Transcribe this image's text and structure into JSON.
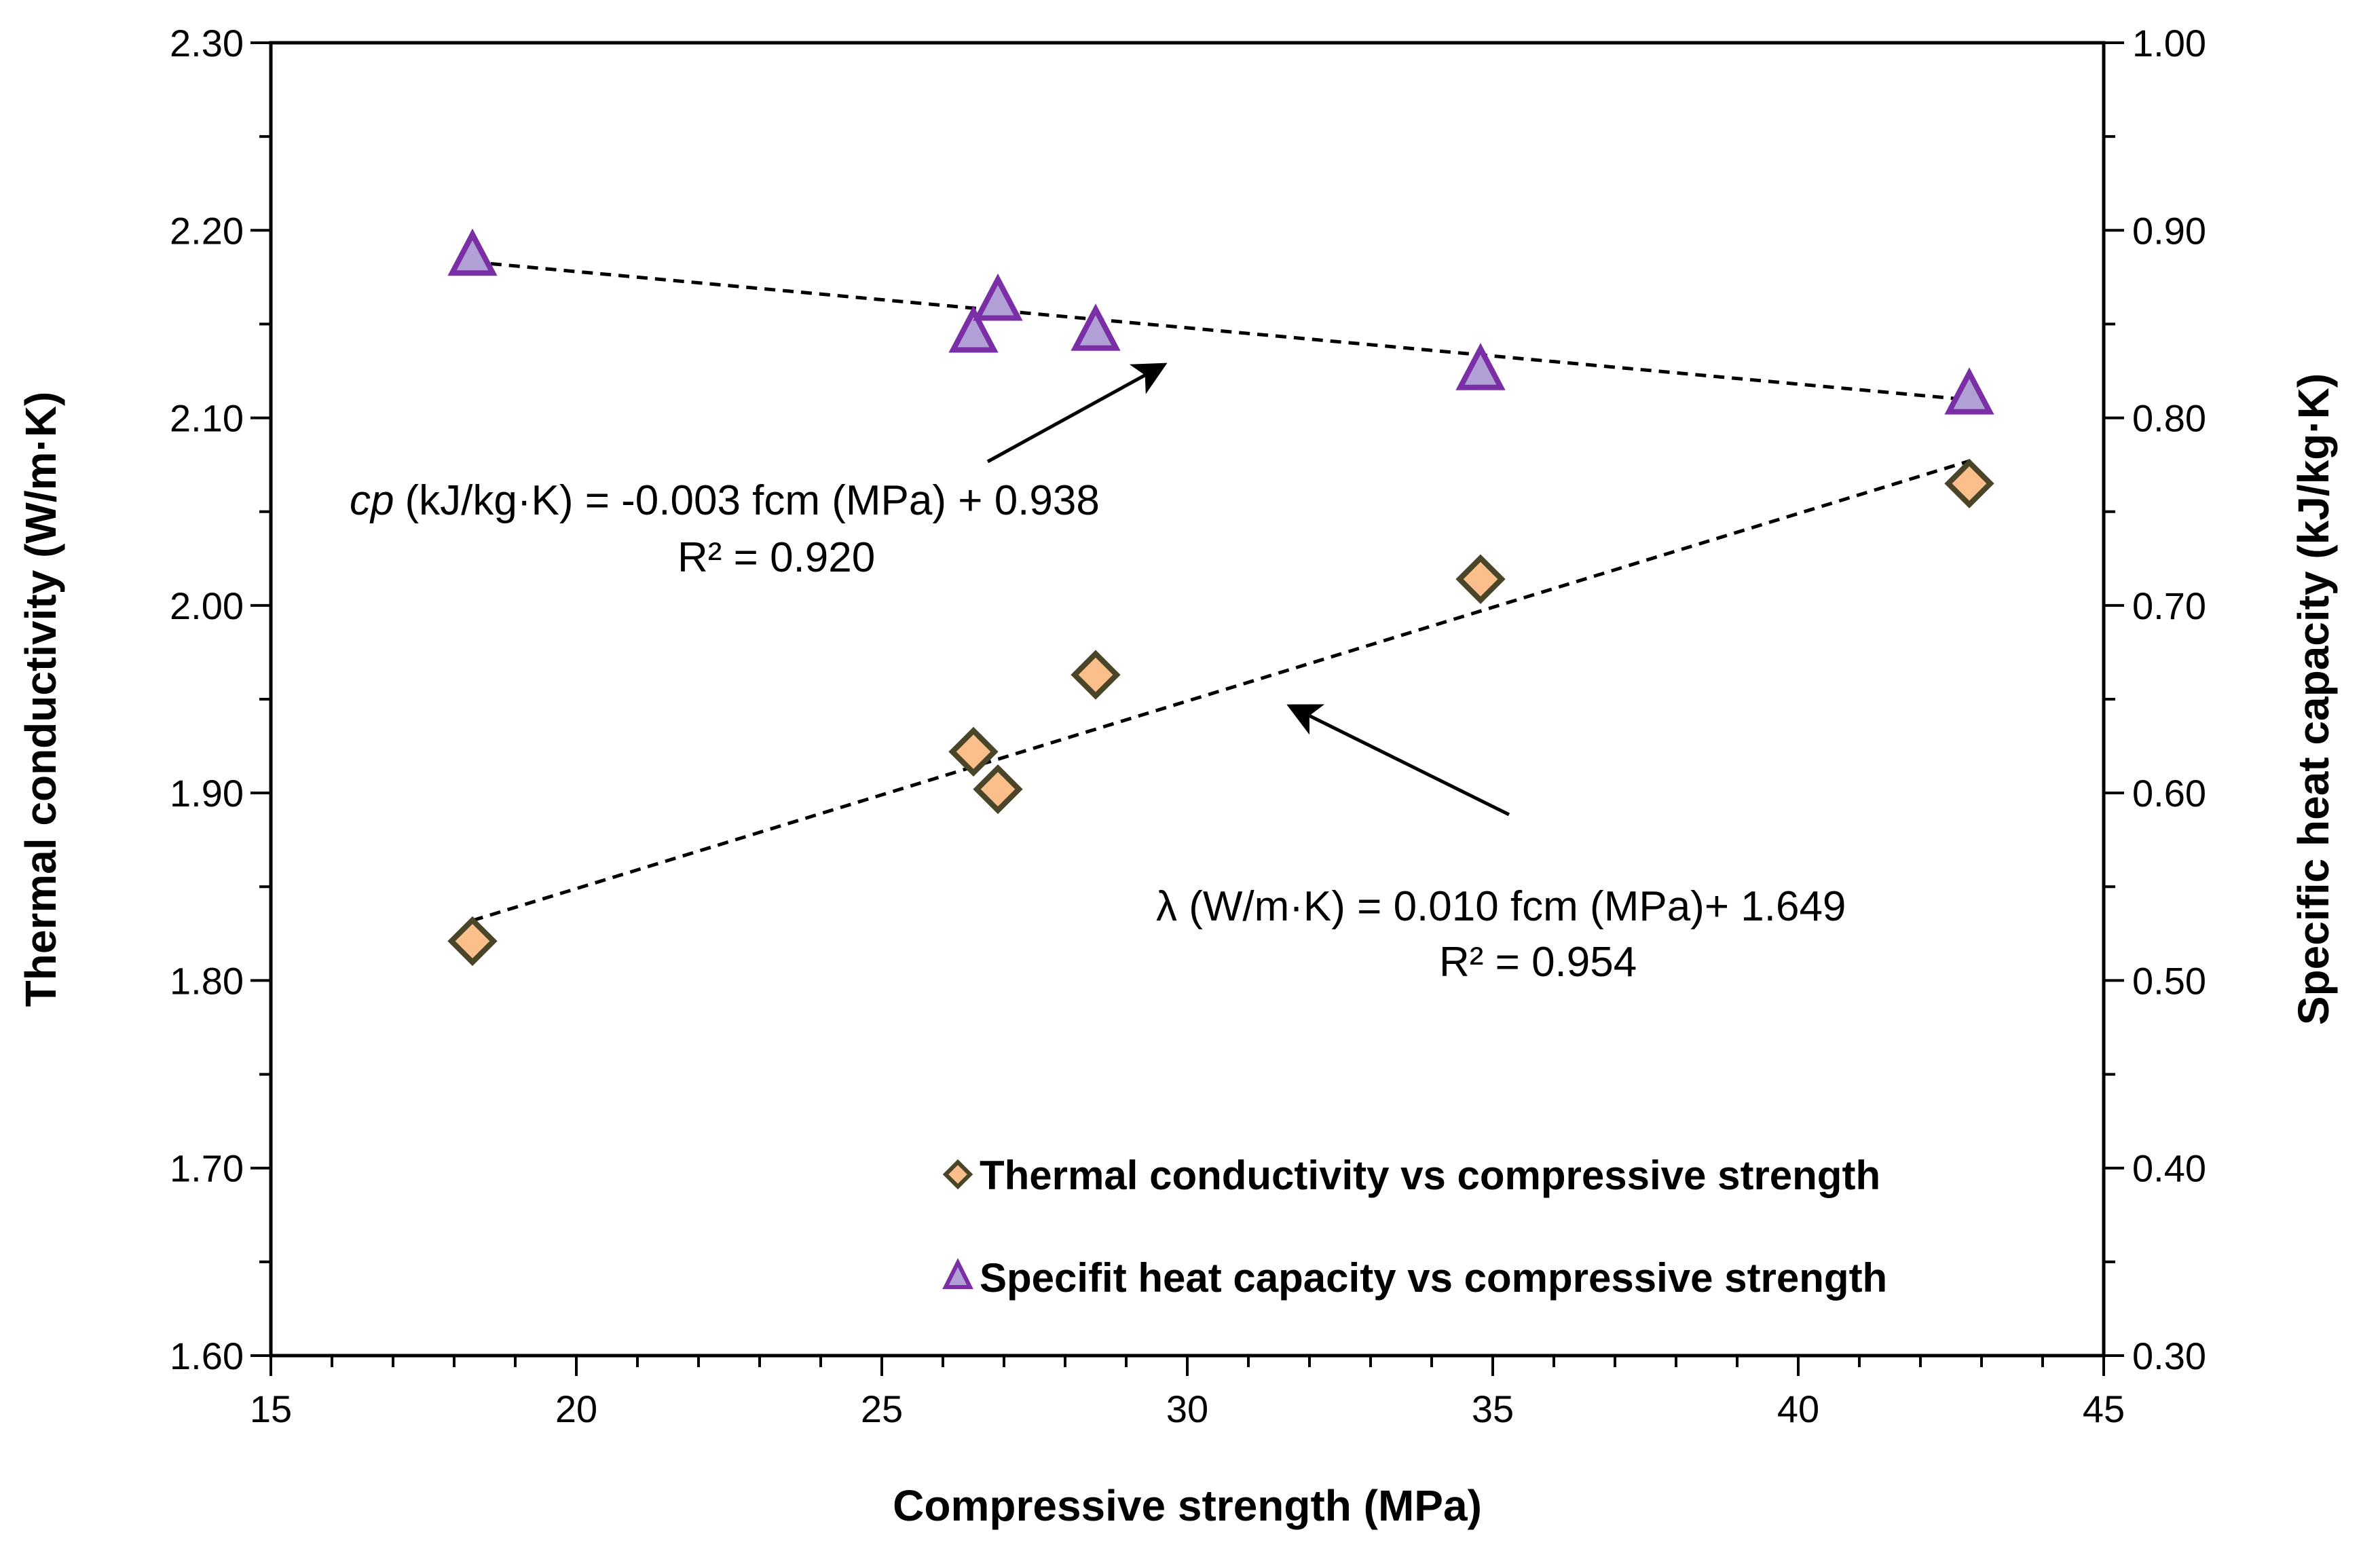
{
  "chart_data": {
    "type": "scatter",
    "title": "",
    "xlabel": "Compressive strength (MPa)",
    "ylabel_left": "Thermal conductivity (W/m·K)",
    "ylabel_right": "Specific heat capacity (kJ/kg·K)",
    "xlim": [
      15,
      45
    ],
    "x_ticks": [
      15,
      20,
      25,
      30,
      35,
      40,
      45
    ],
    "x_tick_labels": [
      "15",
      "20",
      "25",
      "30",
      "35",
      "40",
      "45"
    ],
    "ylim_left": [
      1.6,
      2.3
    ],
    "y_left_ticks": [
      1.6,
      1.7,
      1.8,
      1.9,
      2.0,
      2.1,
      2.2,
      2.3
    ],
    "y_left_tick_labels": [
      "1.60",
      "1.70",
      "1.80",
      "1.90",
      "2.00",
      "2.10",
      "2.20",
      "2.30"
    ],
    "ylim_right": [
      0.3,
      1.0
    ],
    "y_right_ticks": [
      0.3,
      0.4,
      0.5,
      0.6,
      0.7,
      0.8,
      0.9,
      1.0
    ],
    "y_right_tick_labels": [
      "0.30",
      "0.40",
      "0.50",
      "0.60",
      "0.70",
      "0.80",
      "0.90",
      "1.00"
    ],
    "grid": false,
    "legend_position": "bottom-right",
    "series": [
      {
        "name": "Thermal conductivity vs compressive strength",
        "axis": "left",
        "marker": "diamond",
        "fill_color": "#fbbf8c",
        "edge_color": "#4a4428",
        "x": [
          18.3,
          26.5,
          26.9,
          28.5,
          34.8,
          42.8
        ],
        "y": [
          1.821,
          1.922,
          1.902,
          1.963,
          2.014,
          2.065
        ],
        "trendline": {
          "x": [
            18.3,
            42.8
          ],
          "y": [
            1.832,
            2.077
          ]
        }
      },
      {
        "name": "Specifit heat capacity vs compressive strength",
        "axis": "right",
        "marker": "triangle",
        "fill_color": "#b0a0d6",
        "edge_color": "#7b2fa6",
        "x": [
          18.3,
          26.5,
          26.9,
          28.5,
          34.8,
          42.8
        ],
        "y": [
          0.887,
          0.846,
          0.863,
          0.847,
          0.826,
          0.813
        ],
        "trendline": {
          "x": [
            18.3,
            42.8
          ],
          "y": [
            0.8831,
            0.8096
          ]
        }
      }
    ],
    "annotations": [
      {
        "cp_symbol": "cp",
        "equation_rest": "(kJ/kg·K)   = -0.003 fcm (MPa) + 0.938",
        "r2": "R² = 0.920",
        "arrow_to": {
          "x": 29.6,
          "y_left": 2.128
        }
      },
      {
        "equation": "λ (W/m·K) = 0.010 fcm (MPa)+ 1.649",
        "r2": "R² = 0.954",
        "arrow_to": {
          "x": 31.7,
          "y_left": 1.946
        }
      }
    ]
  }
}
